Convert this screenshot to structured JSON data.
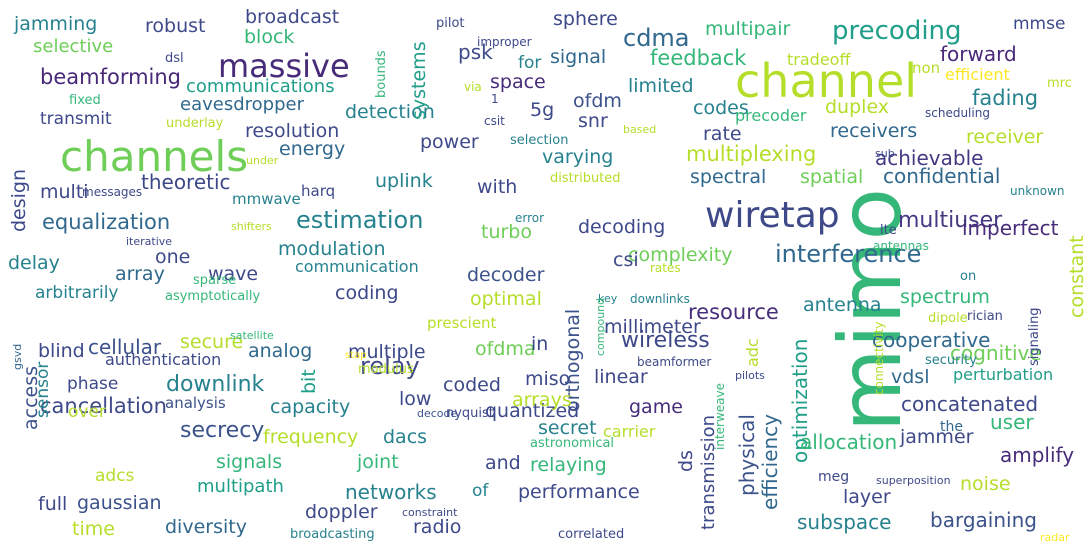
{
  "words": [
    {
      "text": "mimo",
      "color": "#35b779"
    },
    {
      "text": "channel",
      "color": "#b5de2b"
    },
    {
      "text": "channels",
      "color": "#6ece58"
    },
    {
      "text": "wiretap",
      "color": "#3e4989"
    },
    {
      "text": "massive",
      "color": "#472c7a"
    },
    {
      "text": "precoding",
      "color": "#1f9e89"
    },
    {
      "text": "beamforming",
      "color": "#482878"
    },
    {
      "text": "interference",
      "color": "#31688e"
    },
    {
      "text": "estimation",
      "color": "#26828e"
    },
    {
      "text": "multiuser",
      "color": "#443983"
    },
    {
      "text": "secrecy",
      "color": "#3b528b"
    },
    {
      "text": "cdma",
      "color": "#31688e"
    },
    {
      "text": "relay",
      "color": "#3e4989"
    },
    {
      "text": "downlink",
      "color": "#26828e"
    },
    {
      "text": "feedback",
      "color": "#35b779"
    },
    {
      "text": "multiplexing",
      "color": "#b5de2b"
    },
    {
      "text": "wireless",
      "color": "#3e4989"
    },
    {
      "text": "equalization",
      "color": "#31688e"
    },
    {
      "text": "cancellation",
      "color": "#3e4989"
    },
    {
      "text": "spectral",
      "color": "#31688e"
    },
    {
      "text": "energy",
      "color": "#31688e"
    },
    {
      "text": "detection",
      "color": "#26828e"
    },
    {
      "text": "achievable",
      "color": "#443983"
    },
    {
      "text": "confidential",
      "color": "#31688e"
    },
    {
      "text": "cognitive",
      "color": "#6ece58"
    },
    {
      "text": "ofdma",
      "color": "#6ece58"
    },
    {
      "text": "optimization",
      "color": "#1f9e89"
    },
    {
      "text": "efficiency",
      "color": "#31688e"
    },
    {
      "text": "physical",
      "color": "#3b528b"
    },
    {
      "text": "transmission",
      "color": "#3e4989"
    },
    {
      "text": "orthogonal",
      "color": "#3b528b"
    },
    {
      "text": "constant",
      "color": "#b5de2b"
    },
    {
      "text": "cooperative",
      "color": "#31688e"
    },
    {
      "text": "spectrum",
      "color": "#35b779"
    },
    {
      "text": "antenna",
      "color": "#26828e"
    },
    {
      "text": "fading",
      "color": "#26828e"
    },
    {
      "text": "imperfect",
      "color": "#472c7a"
    },
    {
      "text": "modulation",
      "color": "#26828e"
    },
    {
      "text": "complexity",
      "color": "#6ece58"
    },
    {
      "text": "resource",
      "color": "#472c7a"
    },
    {
      "text": "cellular",
      "color": "#3b528b"
    },
    {
      "text": "analog",
      "color": "#31688e"
    },
    {
      "text": "multiple",
      "color": "#3e4989"
    },
    {
      "text": "capacity",
      "color": "#26828e"
    },
    {
      "text": "signals",
      "color": "#35b779"
    },
    {
      "text": "joint",
      "color": "#35b779"
    },
    {
      "text": "networks",
      "color": "#26828e"
    },
    {
      "text": "multipath",
      "color": "#1f9e89"
    },
    {
      "text": "diversity",
      "color": "#31688e"
    },
    {
      "text": "gaussian",
      "color": "#3b528b"
    },
    {
      "text": "allocation",
      "color": "#35b779"
    },
    {
      "text": "bargaining",
      "color": "#3b528b"
    },
    {
      "text": "subspace",
      "color": "#26828e"
    },
    {
      "text": "amplify",
      "color": "#472c7a"
    },
    {
      "text": "jammer",
      "color": "#3e4989"
    },
    {
      "text": "concatenated",
      "color": "#3e4989"
    },
    {
      "text": "uplink",
      "color": "#26828e"
    },
    {
      "text": "theoretic",
      "color": "#3e4989"
    },
    {
      "text": "decoding",
      "color": "#3e4989"
    },
    {
      "text": "decoder",
      "color": "#3b528b"
    },
    {
      "text": "quantized",
      "color": "#3e4989"
    },
    {
      "text": "relaying",
      "color": "#35b779"
    },
    {
      "text": "performance",
      "color": "#3e4989"
    },
    {
      "text": "frequency",
      "color": "#b5de2b"
    },
    {
      "text": "dacs",
      "color": "#26828e"
    },
    {
      "text": "doppler",
      "color": "#3e4989"
    },
    {
      "text": "secret",
      "color": "#26828e"
    },
    {
      "text": "arrays",
      "color": "#b5de2b"
    },
    {
      "text": "access",
      "color": "#3b528b"
    },
    {
      "text": "sensor",
      "color": "#26828e"
    },
    {
      "text": "design",
      "color": "#3e4989"
    },
    {
      "text": "transmit",
      "color": "#3e4989"
    },
    {
      "text": "resolution",
      "color": "#3e4989"
    },
    {
      "text": "communications",
      "color": "#1f9e89"
    },
    {
      "text": "eavesdropper",
      "color": "#31688e"
    },
    {
      "text": "systems",
      "color": "#1f9e89"
    },
    {
      "text": "sphere",
      "color": "#3e4989"
    },
    {
      "text": "signal",
      "color": "#31688e"
    },
    {
      "text": "jamming",
      "color": "#26828e"
    },
    {
      "text": "robust",
      "color": "#3e4989"
    },
    {
      "text": "broadcast",
      "color": "#3e4989"
    },
    {
      "text": "block",
      "color": "#35b779"
    },
    {
      "text": "selective",
      "color": "#6ece58"
    },
    {
      "text": "multipair",
      "color": "#35b779"
    },
    {
      "text": "forward",
      "color": "#482878"
    },
    {
      "text": "mmse",
      "color": "#3e4989"
    },
    {
      "text": "receiver",
      "color": "#b5de2b"
    },
    {
      "text": "receivers",
      "color": "#31688e"
    },
    {
      "text": "rate",
      "color": "#3e4989"
    },
    {
      "text": "duplex",
      "color": "#b5de2b"
    },
    {
      "text": "codes",
      "color": "#26828e"
    },
    {
      "text": "limited",
      "color": "#26828e"
    },
    {
      "text": "varying",
      "color": "#26828e"
    },
    {
      "text": "power",
      "color": "#3e4989"
    },
    {
      "text": "snr",
      "color": "#3e4989"
    },
    {
      "text": "ofdm",
      "color": "#3b528b"
    },
    {
      "text": "5g",
      "color": "#3e4989"
    },
    {
      "text": "space",
      "color": "#472c7a"
    },
    {
      "text": "for",
      "color": "#26828e"
    },
    {
      "text": "psk",
      "color": "#3e4989"
    },
    {
      "text": "spatial",
      "color": "#6ece58"
    },
    {
      "text": "with",
      "color": "#3e4989"
    },
    {
      "text": "turbo",
      "color": "#6ece58"
    },
    {
      "text": "harq",
      "color": "#3e4989"
    },
    {
      "text": "mmwave",
      "color": "#26828e"
    },
    {
      "text": "multi",
      "color": "#3e4989"
    },
    {
      "text": "one",
      "color": "#3e4989"
    },
    {
      "text": "array",
      "color": "#31688e"
    },
    {
      "text": "wave",
      "color": "#3e4989"
    },
    {
      "text": "delay",
      "color": "#26828e"
    },
    {
      "text": "arbitrarily",
      "color": "#26828e"
    },
    {
      "text": "coding",
      "color": "#3e4989"
    },
    {
      "text": "optimal",
      "color": "#b5de2b"
    },
    {
      "text": "csi",
      "color": "#3e4989"
    },
    {
      "text": "millimeter",
      "color": "#3e4989"
    },
    {
      "text": "communication",
      "color": "#26828e"
    },
    {
      "text": "blind",
      "color": "#3e4989"
    },
    {
      "text": "secure",
      "color": "#b5de2b"
    },
    {
      "text": "authentication",
      "color": "#3e4989"
    },
    {
      "text": "phase",
      "color": "#3e4989"
    },
    {
      "text": "bit",
      "color": "#1f9e89"
    },
    {
      "text": "over",
      "color": "#b5de2b"
    },
    {
      "text": "in",
      "color": "#3e4989"
    },
    {
      "text": "coded",
      "color": "#3e4989"
    },
    {
      "text": "miso",
      "color": "#3e4989"
    },
    {
      "text": "linear",
      "color": "#3e4989"
    },
    {
      "text": "low",
      "color": "#3e4989"
    },
    {
      "text": "game",
      "color": "#472c7a"
    },
    {
      "text": "vdsl",
      "color": "#31688e"
    },
    {
      "text": "perturbation",
      "color": "#1f9e89"
    },
    {
      "text": "user",
      "color": "#35b779"
    },
    {
      "text": "noise",
      "color": "#b5de2b"
    },
    {
      "text": "layer",
      "color": "#3e4989"
    },
    {
      "text": "radar",
      "color": "#fde725"
    },
    {
      "text": "radio",
      "color": "#3e4989"
    },
    {
      "text": "of",
      "color": "#26828e"
    },
    {
      "text": "and",
      "color": "#3e4989"
    },
    {
      "text": "full",
      "color": "#3e4989"
    },
    {
      "text": "time",
      "color": "#b5de2b"
    },
    {
      "text": "adcs",
      "color": "#b5de2b"
    },
    {
      "text": "ds",
      "color": "#3e4989"
    },
    {
      "text": "adc",
      "color": "#b5de2b"
    },
    {
      "text": "meg",
      "color": "#3e4989"
    },
    {
      "text": "the",
      "color": "#31688e"
    },
    {
      "text": "analysis",
      "color": "#3b528b"
    },
    {
      "text": "carrier",
      "color": "#b5de2b"
    },
    {
      "text": "astronomical",
      "color": "#35b779"
    },
    {
      "text": "nyquist",
      "color": "#3e4989"
    },
    {
      "text": "decode",
      "color": "#3b528b"
    },
    {
      "text": "interweave",
      "color": "#35b779"
    },
    {
      "text": "superposition",
      "color": "#3e4989"
    },
    {
      "text": "connectivity",
      "color": "#b5de2b"
    },
    {
      "text": "constraint",
      "color": "#3e4989"
    },
    {
      "text": "broadcasting",
      "color": "#26828e"
    },
    {
      "text": "correlated",
      "color": "#3e4989"
    },
    {
      "text": "beamformer",
      "color": "#3e4989"
    },
    {
      "text": "pilots",
      "color": "#3e4989"
    },
    {
      "text": "stap",
      "color": "#fde725"
    },
    {
      "text": "modulus",
      "color": "#b5de2b"
    },
    {
      "text": "satellite",
      "color": "#35b779"
    },
    {
      "text": "gsvd",
      "color": "#31688e"
    },
    {
      "text": "asymptotically",
      "color": "#35b779"
    },
    {
      "text": "sparse",
      "color": "#35b779"
    },
    {
      "text": "iterative",
      "color": "#3e4989"
    },
    {
      "text": "shifters",
      "color": "#b5de2b"
    },
    {
      "text": "rates",
      "color": "#b5de2b"
    },
    {
      "text": "key",
      "color": "#26828e"
    },
    {
      "text": "downlinks",
      "color": "#26828e"
    },
    {
      "text": "compound",
      "color": "#35b779"
    },
    {
      "text": "prescient",
      "color": "#b5de2b"
    },
    {
      "text": "dipole",
      "color": "#b5de2b"
    },
    {
      "text": "rician",
      "color": "#3e4989"
    },
    {
      "text": "security",
      "color": "#26828e"
    },
    {
      "text": "signaling",
      "color": "#3e4989"
    },
    {
      "text": "lte",
      "color": "#3e4989"
    },
    {
      "text": "antennas",
      "color": "#35b779"
    },
    {
      "text": "on",
      "color": "#26828e"
    },
    {
      "text": "unknown",
      "color": "#26828e"
    },
    {
      "text": "sub",
      "color": "#3e4989"
    },
    {
      "text": "error",
      "color": "#26828e"
    },
    {
      "text": "messages",
      "color": "#3e4989"
    },
    {
      "text": "under",
      "color": "#b5de2b"
    },
    {
      "text": "distributed",
      "color": "#b5de2b"
    },
    {
      "text": "selection",
      "color": "#26828e"
    },
    {
      "text": "based",
      "color": "#b5de2b"
    },
    {
      "text": "csit",
      "color": "#3e4989"
    },
    {
      "text": "precoder",
      "color": "#35b779"
    },
    {
      "text": "scheduling",
      "color": "#3e4989"
    },
    {
      "text": "mrc",
      "color": "#b5de2b"
    },
    {
      "text": "efficient",
      "color": "#fde725"
    },
    {
      "text": "non",
      "color": "#b5de2b"
    },
    {
      "text": "tradeoff",
      "color": "#b5de2b"
    },
    {
      "text": "underlay",
      "color": "#b5de2b"
    },
    {
      "text": "fixed",
      "color": "#35b779"
    },
    {
      "text": "dsl",
      "color": "#3e4989"
    },
    {
      "text": "improper",
      "color": "#3e4989"
    },
    {
      "text": "pilot",
      "color": "#3e4989"
    },
    {
      "text": "bounds",
      "color": "#35b779"
    },
    {
      "text": "via",
      "color": "#b5de2b"
    },
    {
      "text": "1",
      "color": "#3e4989"
    }
  ]
}
